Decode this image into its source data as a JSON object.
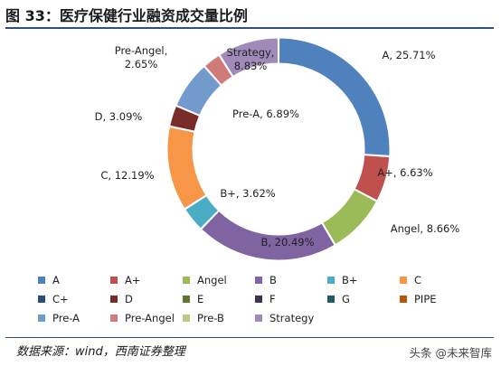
{
  "figure_title": "图 33：医疗保健行业融资成交量比例",
  "source_note": "数据来源：wind，西南证券整理",
  "watermark": "头条 @未来智库",
  "chart_data": {
    "type": "pie",
    "donut": true,
    "title": "",
    "legend_position": "bottom",
    "slices": [
      {
        "name": "A",
        "value": 25.71,
        "color": "#4f81bd",
        "label": "A, 25.71%"
      },
      {
        "name": "A+",
        "value": 6.63,
        "color": "#c0504d",
        "label": "A+, 6.63%"
      },
      {
        "name": "Angel",
        "value": 8.66,
        "color": "#9bbb59",
        "label": "Angel, 8.66%"
      },
      {
        "name": "B",
        "value": 20.49,
        "color": "#8064a2",
        "label": "B, 20.49%"
      },
      {
        "name": "B+",
        "value": 3.62,
        "color": "#4bacc6",
        "label": "B+, 3.62%"
      },
      {
        "name": "C",
        "value": 12.19,
        "color": "#f79646",
        "label": "C, 12.19%"
      },
      {
        "name": "C+",
        "value": 0.0,
        "color": "#2c4d75",
        "label": ""
      },
      {
        "name": "D",
        "value": 3.09,
        "color": "#772c2a",
        "label": "D, 3.09%"
      },
      {
        "name": "E",
        "value": 0.0,
        "color": "#5f7530",
        "label": ""
      },
      {
        "name": "F",
        "value": 0.0,
        "color": "#403152",
        "label": ""
      },
      {
        "name": "G",
        "value": 0.0,
        "color": "#215968",
        "label": ""
      },
      {
        "name": "PIPE",
        "value": 0.0,
        "color": "#b65708",
        "label": ""
      },
      {
        "name": "Pre-A",
        "value": 6.89,
        "color": "#729aca",
        "label": "Pre-A, 6.89%"
      },
      {
        "name": "Pre-Angel",
        "value": 2.65,
        "color": "#d07b79",
        "label": "Pre-Angel, 2.65%"
      },
      {
        "name": "Pre-B",
        "value": 0.0,
        "color": "#b5cc84",
        "label": ""
      },
      {
        "name": "Strategy",
        "value": 8.83,
        "color": "#9f8ab9",
        "label": "Strategy, 8.83%"
      }
    ]
  }
}
